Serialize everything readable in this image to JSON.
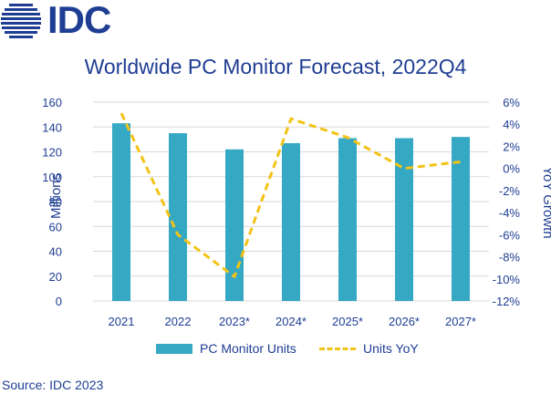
{
  "logo": {
    "text": "IDC",
    "icon": "idc-globe-icon",
    "color": "#1f3e93"
  },
  "colors": {
    "bar": "#35a8c4",
    "line": "#f3c317",
    "text": "#1f3e93",
    "grid": "#d9d9d9"
  },
  "chart_data": {
    "type": "bar",
    "title": "Worldwide PC Monitor Forecast, 2022Q4",
    "categories": [
      "2021",
      "2022",
      "2023*",
      "2024*",
      "2025*",
      "2026*",
      "2027*"
    ],
    "series": [
      {
        "name": "PC Monitor Units",
        "type": "bar",
        "axis": "left",
        "values": [
          143,
          135,
          122,
          127,
          131,
          131,
          132
        ]
      },
      {
        "name": "Units YoY",
        "type": "line",
        "style": "dashed",
        "axis": "right",
        "values": [
          5.0,
          -6.0,
          -9.8,
          4.5,
          2.8,
          0.0,
          0.6
        ]
      }
    ],
    "ylabel": "Millions",
    "ylim": [
      0,
      160
    ],
    "yticks": [
      "0",
      "20",
      "40",
      "60",
      "80",
      "100",
      "120",
      "140",
      "160"
    ],
    "y2label": "YoY Growth",
    "y2lim": [
      -12,
      6
    ],
    "y2ticks": [
      "-12%",
      "-10%",
      "-8%",
      "-6%",
      "-4%",
      "-2%",
      "0%",
      "2%",
      "4%",
      "6%"
    ],
    "grid": "horizontal",
    "legend_position": "bottom"
  },
  "legend": {
    "bar_label": "PC Monitor Units",
    "line_label": "Units YoY"
  },
  "source": "Source: IDC 2023"
}
